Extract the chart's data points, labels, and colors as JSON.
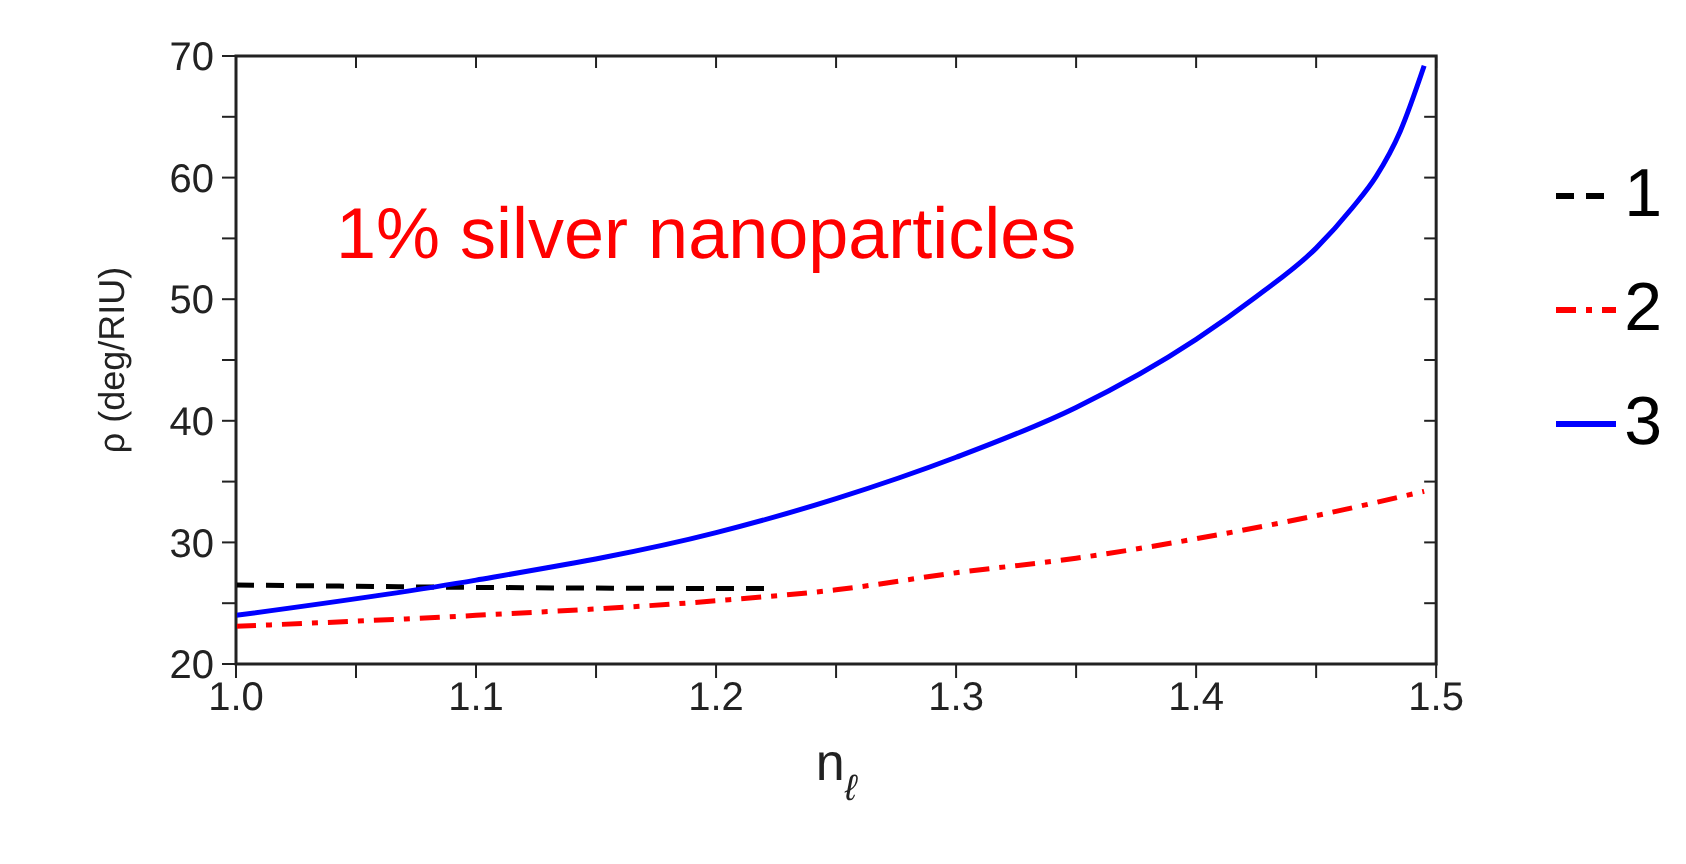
{
  "chart_data": {
    "type": "line",
    "xlabel": "n$_{ℓ}$",
    "ylabel": "ρ (deg/RIU)",
    "annotations": [
      "1% silver nanoparticles"
    ],
    "xlim": [
      1.0,
      1.5
    ],
    "xticks": [
      {
        "value": 1.0,
        "label": "1.0"
      },
      {
        "value": 1.05,
        "label": null
      },
      {
        "value": 1.1,
        "label": "1.1"
      },
      {
        "value": 1.15,
        "label": null
      },
      {
        "value": 1.2,
        "label": "1.2"
      },
      {
        "value": 1.25,
        "label": null
      },
      {
        "value": 1.3,
        "label": "1.3"
      },
      {
        "value": 1.35,
        "label": null
      },
      {
        "value": 1.4,
        "label": "1.4"
      },
      {
        "value": 1.45,
        "label": null
      },
      {
        "value": 1.5,
        "label": "1.5"
      }
    ],
    "ylim": [
      20,
      70
    ],
    "yticks": [
      20,
      {
        "value": 25,
        "label": null
      },
      30,
      {
        "value": 35,
        "label": null
      },
      40,
      {
        "value": 45,
        "label": null
      },
      50,
      {
        "value": 55,
        "label": null
      },
      60,
      {
        "value": 65,
        "label": null
      },
      70
    ],
    "legend": "right",
    "marker": "none",
    "series": [
      {
        "name": "1",
        "color": "#000000",
        "line_style": "dashed",
        "x": [
          1.0,
          1.1,
          1.22
        ],
        "values": [
          26.5,
          26.3,
          26.2
        ]
      },
      {
        "name": "2",
        "color": "#ff0000",
        "line_style": "dashdot",
        "x": [
          1.0,
          1.1,
          1.2,
          1.25,
          1.3,
          1.35,
          1.4,
          1.45,
          1.495
        ],
        "values": [
          23.1,
          24.0,
          25.2,
          26.1,
          27.5,
          28.7,
          30.3,
          32.2,
          34.2
        ]
      },
      {
        "name": "3",
        "color": "#0000ff",
        "line_style": "solid",
        "x": [
          1.0,
          1.1,
          1.2,
          1.25,
          1.3,
          1.35,
          1.4,
          1.425,
          1.45,
          1.465,
          1.475,
          1.485,
          1.495
        ],
        "values": [
          24.0,
          26.9,
          30.8,
          33.6,
          37.0,
          41.1,
          46.7,
          50.2,
          54.2,
          57.5,
          60.1,
          63.8,
          69.2
        ]
      }
    ]
  }
}
